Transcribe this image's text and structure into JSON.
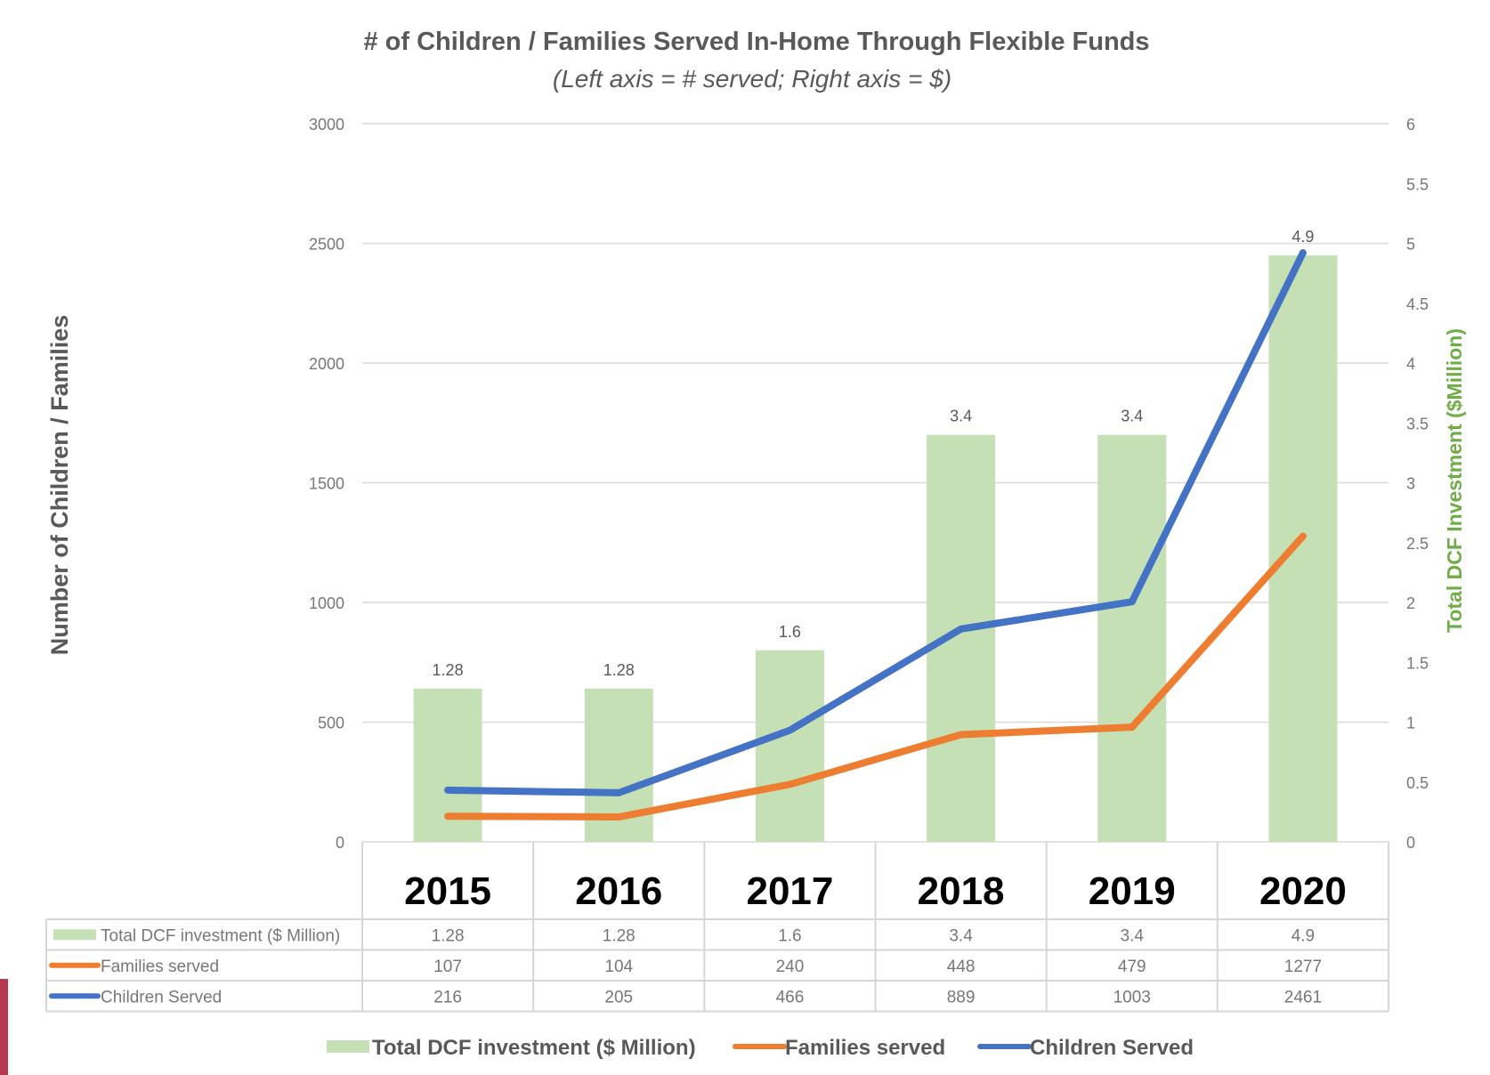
{
  "chart_data": {
    "type": "bar",
    "title": "# of Children / Families Served In-Home Through Flexible Funds",
    "subtitle": "(Left axis = # served; Right axis = $)",
    "ylabel_left": "Number of Children / Families",
    "ylabel_right": "Total DCF Investment ($Million)",
    "categories": [
      "2015",
      "2016",
      "2017",
      "2018",
      "2019",
      "2020"
    ],
    "ylim_left": [
      0,
      3000
    ],
    "yticks_left": [
      "0",
      "500",
      "1000",
      "1500",
      "2000",
      "2500",
      "3000"
    ],
    "ylim_right": [
      0,
      6
    ],
    "yticks_right": [
      "0",
      "0.5",
      "1",
      "1.5",
      "2",
      "2.5",
      "3",
      "3.5",
      "4",
      "4.5",
      "5",
      "5.5",
      "6"
    ],
    "grid": true,
    "legend_position": "bottom",
    "data_table": true,
    "series": [
      {
        "name": "Total DCF investment ($ Million)",
        "type": "bar",
        "axis": "right",
        "color": "#c5e0b4",
        "values": [
          1.28,
          1.28,
          1.6,
          3.4,
          3.4,
          4.9
        ],
        "labels": [
          "1.28",
          "1.28",
          "1.6",
          "3.4",
          "3.4",
          "4.9"
        ]
      },
      {
        "name": "Families served",
        "type": "line",
        "axis": "left",
        "color": "#ed7d31",
        "values": [
          107,
          104,
          240,
          448,
          479,
          1277
        ],
        "labels": [
          "107",
          "104",
          "240",
          "448",
          "479",
          "1277"
        ]
      },
      {
        "name": "Children Served",
        "type": "line",
        "axis": "left",
        "color": "#4472c4",
        "values": [
          216,
          205,
          466,
          889,
          1003,
          2461
        ],
        "labels": [
          "216",
          "205",
          "466",
          "889",
          "1003",
          "2461"
        ]
      }
    ],
    "colors": {
      "right_axis_label": "#70ad47",
      "text": "#595959",
      "grid": "#d9d9d9",
      "accent": "#b5394f"
    }
  }
}
